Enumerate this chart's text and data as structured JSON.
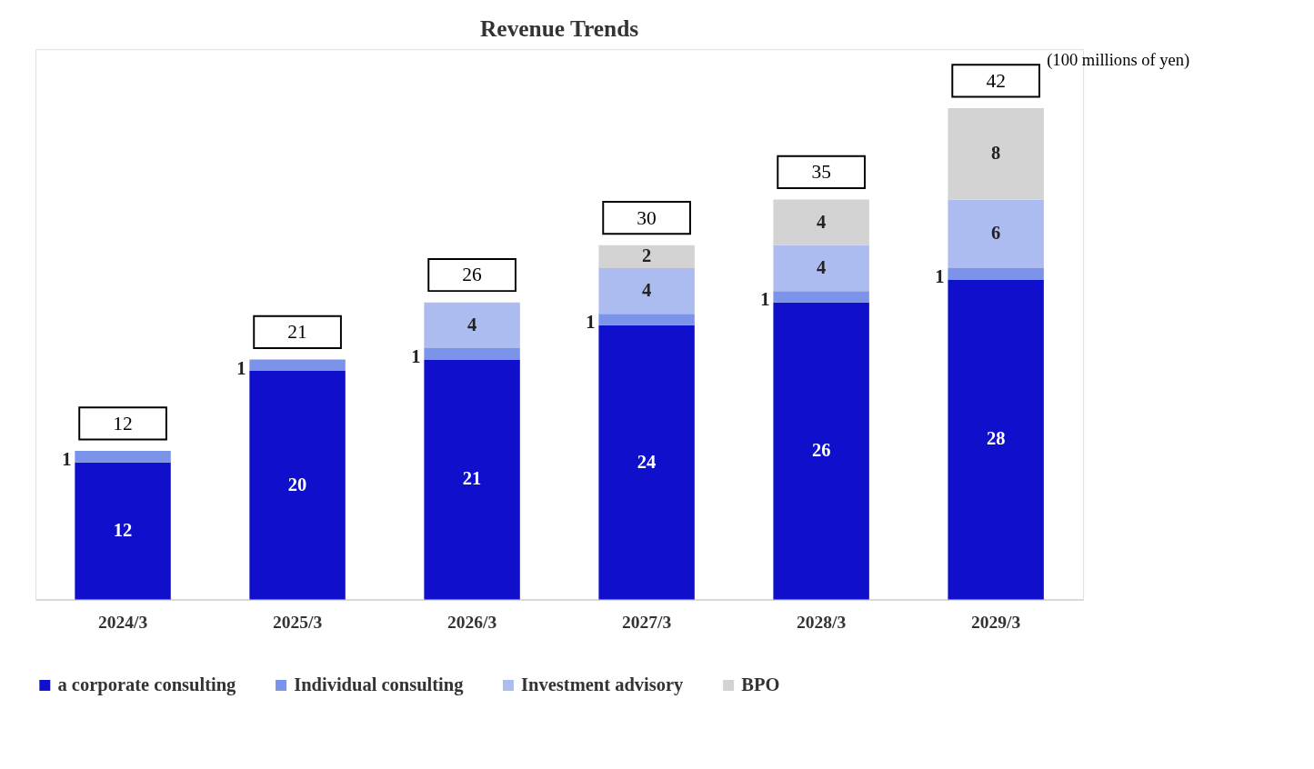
{
  "chart_data": {
    "type": "bar",
    "title": "Revenue Trends",
    "stacked": true,
    "data_labels": true,
    "legend": "bottom",
    "grid": false,
    "categories": [
      "2024/3",
      "2025/3",
      "2026/3",
      "2027/3",
      "2028/3",
      "2029/3"
    ],
    "series": [
      {
        "name": "a corporate consulting",
        "color": "#1010cc",
        "values": [
          12,
          20,
          21,
          24,
          26,
          28
        ]
      },
      {
        "name": "Individual consulting",
        "color": "#7b93e8",
        "values": [
          1,
          1,
          1,
          1,
          1,
          1
        ]
      },
      {
        "name": "Investment advisory",
        "color": "#adbcf0",
        "values": [
          null,
          null,
          4,
          4,
          4,
          6
        ]
      },
      {
        "name": "BPO",
        "color": "#d3d3d3",
        "values": [
          null,
          null,
          null,
          2,
          4,
          8
        ]
      }
    ],
    "totals": [
      "12",
      "21",
      "26",
      "30",
      "35",
      "42"
    ],
    "annotations": [
      "(100 millions of yen)"
    ]
  }
}
